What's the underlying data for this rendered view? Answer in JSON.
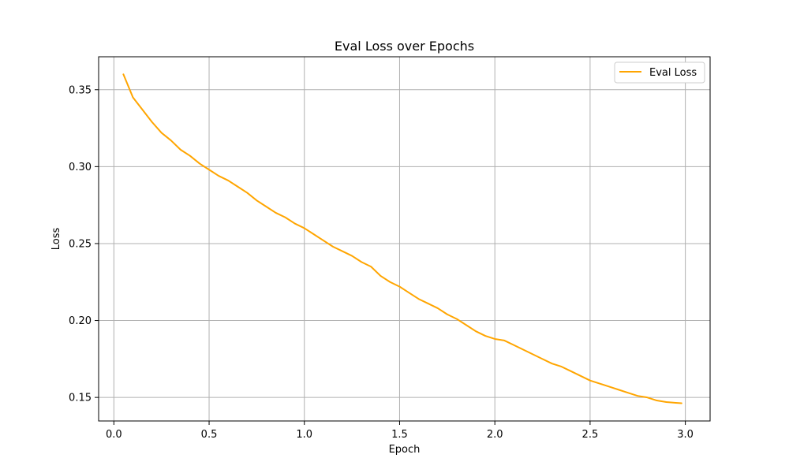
{
  "chart_data": {
    "type": "line",
    "title": "Eval Loss over Epochs",
    "xlabel": "Epoch",
    "ylabel": "Loss",
    "xlim": [
      -0.08,
      3.13
    ],
    "ylim": [
      0.1347,
      0.3714
    ],
    "xticks": [
      0.0,
      0.5,
      1.0,
      1.5,
      2.0,
      2.5,
      3.0
    ],
    "xtick_labels": [
      "0.0",
      "0.5",
      "1.0",
      "1.5",
      "2.0",
      "2.5",
      "3.0"
    ],
    "yticks": [
      0.15,
      0.2,
      0.25,
      0.3,
      0.35
    ],
    "ytick_labels": [
      "0.15",
      "0.20",
      "0.25",
      "0.30",
      "0.35"
    ],
    "grid": true,
    "legend": {
      "position": "top-right"
    },
    "series": [
      {
        "name": "Eval Loss",
        "color": "#FFA500",
        "x": [
          0.05,
          0.1,
          0.15,
          0.2,
          0.25,
          0.3,
          0.35,
          0.4,
          0.45,
          0.5,
          0.55,
          0.6,
          0.65,
          0.7,
          0.75,
          0.8,
          0.85,
          0.9,
          0.95,
          1.0,
          1.05,
          1.1,
          1.15,
          1.2,
          1.25,
          1.3,
          1.35,
          1.4,
          1.45,
          1.5,
          1.55,
          1.6,
          1.65,
          1.7,
          1.75,
          1.8,
          1.85,
          1.9,
          1.95,
          2.0,
          2.05,
          2.1,
          2.15,
          2.2,
          2.25,
          2.3,
          2.35,
          2.4,
          2.45,
          2.5,
          2.55,
          2.6,
          2.65,
          2.7,
          2.75,
          2.8,
          2.85,
          2.9,
          2.95,
          2.98
        ],
        "y": [
          0.36,
          0.345,
          0.337,
          0.329,
          0.322,
          0.317,
          0.311,
          0.307,
          0.302,
          0.298,
          0.294,
          0.291,
          0.287,
          0.283,
          0.278,
          0.274,
          0.27,
          0.267,
          0.263,
          0.26,
          0.256,
          0.252,
          0.248,
          0.245,
          0.242,
          0.238,
          0.235,
          0.229,
          0.225,
          0.222,
          0.218,
          0.214,
          0.211,
          0.208,
          0.204,
          0.201,
          0.197,
          0.193,
          0.19,
          0.188,
          0.187,
          0.184,
          0.181,
          0.178,
          0.175,
          0.172,
          0.17,
          0.167,
          0.164,
          0.161,
          0.159,
          0.157,
          0.155,
          0.153,
          0.151,
          0.15,
          0.148,
          0.147,
          0.1465,
          0.1462
        ]
      }
    ]
  }
}
